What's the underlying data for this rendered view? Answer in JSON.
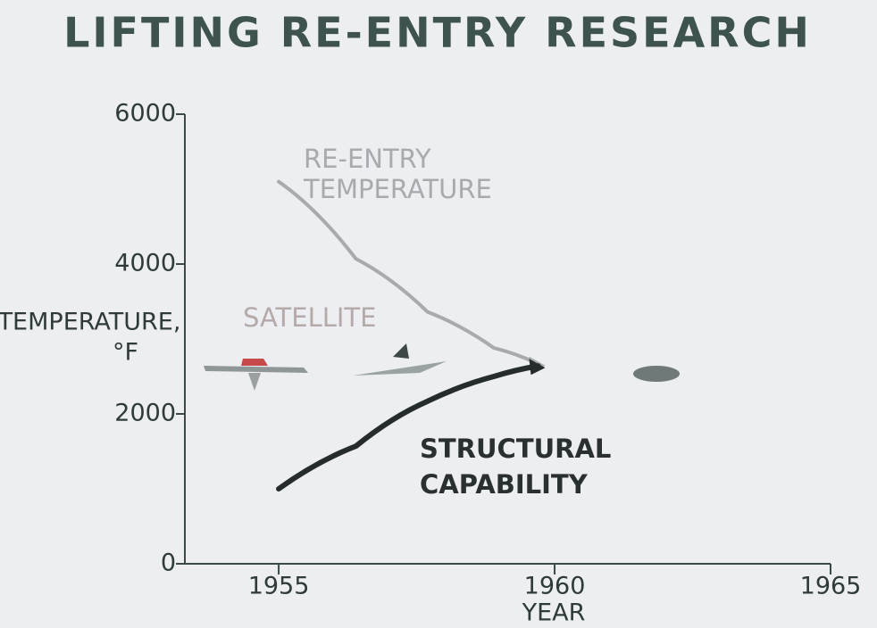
{
  "chart_data": {
    "type": "line",
    "title": "LIFTING RE-ENTRY RESEARCH",
    "y_label_lines": [
      "TEMPERATURE,",
      "°F"
    ],
    "x_label": "YEAR",
    "x": [
      1955,
      1956.4,
      1957.7,
      1958.9,
      1959.7
    ],
    "series": [
      {
        "name_lines": [
          "RE-ENTRY",
          "TEMPERATURE"
        ],
        "color": "#a7abae",
        "values": [
          5100,
          4070,
          3360,
          2880,
          2670
        ]
      },
      {
        "name_lines": [
          "STRUCTURAL",
          "CAPABILITY"
        ],
        "color": "#262b2c",
        "values": [
          1000,
          1570,
          2170,
          2500,
          2640
        ]
      }
    ],
    "annotations": [
      "SATELLITE"
    ],
    "xlim": [
      1953.3,
      1965
    ],
    "xticks": [
      1955,
      1960,
      1965
    ],
    "ylim": [
      0,
      6000
    ],
    "yticks": [
      0,
      2000,
      4000,
      6000
    ]
  }
}
